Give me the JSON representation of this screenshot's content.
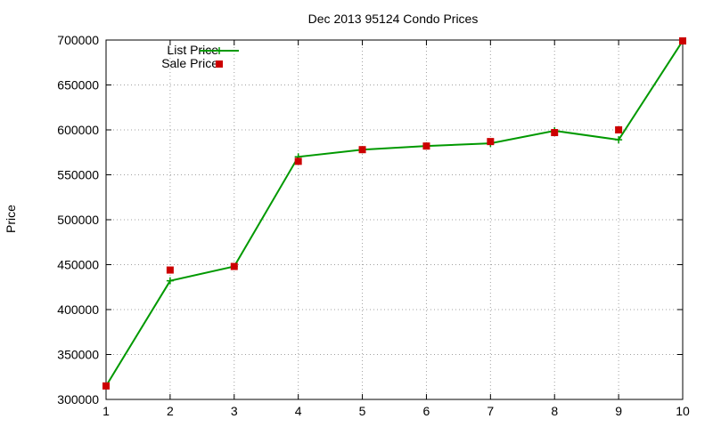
{
  "chart_data": {
    "type": "line",
    "title": "Dec 2013 95124 Condo Prices",
    "xlabel": "",
    "ylabel": "Price",
    "x": [
      1,
      2,
      3,
      4,
      5,
      6,
      7,
      8,
      9,
      10
    ],
    "xlim": [
      1,
      10
    ],
    "ylim": [
      300000,
      700000
    ],
    "yticks": [
      300000,
      350000,
      400000,
      450000,
      500000,
      550000,
      600000,
      650000,
      700000
    ],
    "xticks": [
      1,
      2,
      3,
      4,
      5,
      6,
      7,
      8,
      9,
      10
    ],
    "grid": true,
    "legend_position": "top-left",
    "series": [
      {
        "name": "List Price",
        "style": "line-plus",
        "color": "#009900",
        "values": [
          315000,
          432000,
          448000,
          570000,
          578000,
          582000,
          585000,
          599000,
          589000,
          699000
        ]
      },
      {
        "name": "Sale Price",
        "style": "square-marker",
        "color": "#cc0000",
        "values": [
          315000,
          444000,
          448000,
          565000,
          578000,
          582000,
          587000,
          597000,
          600000,
          699000
        ]
      }
    ]
  }
}
